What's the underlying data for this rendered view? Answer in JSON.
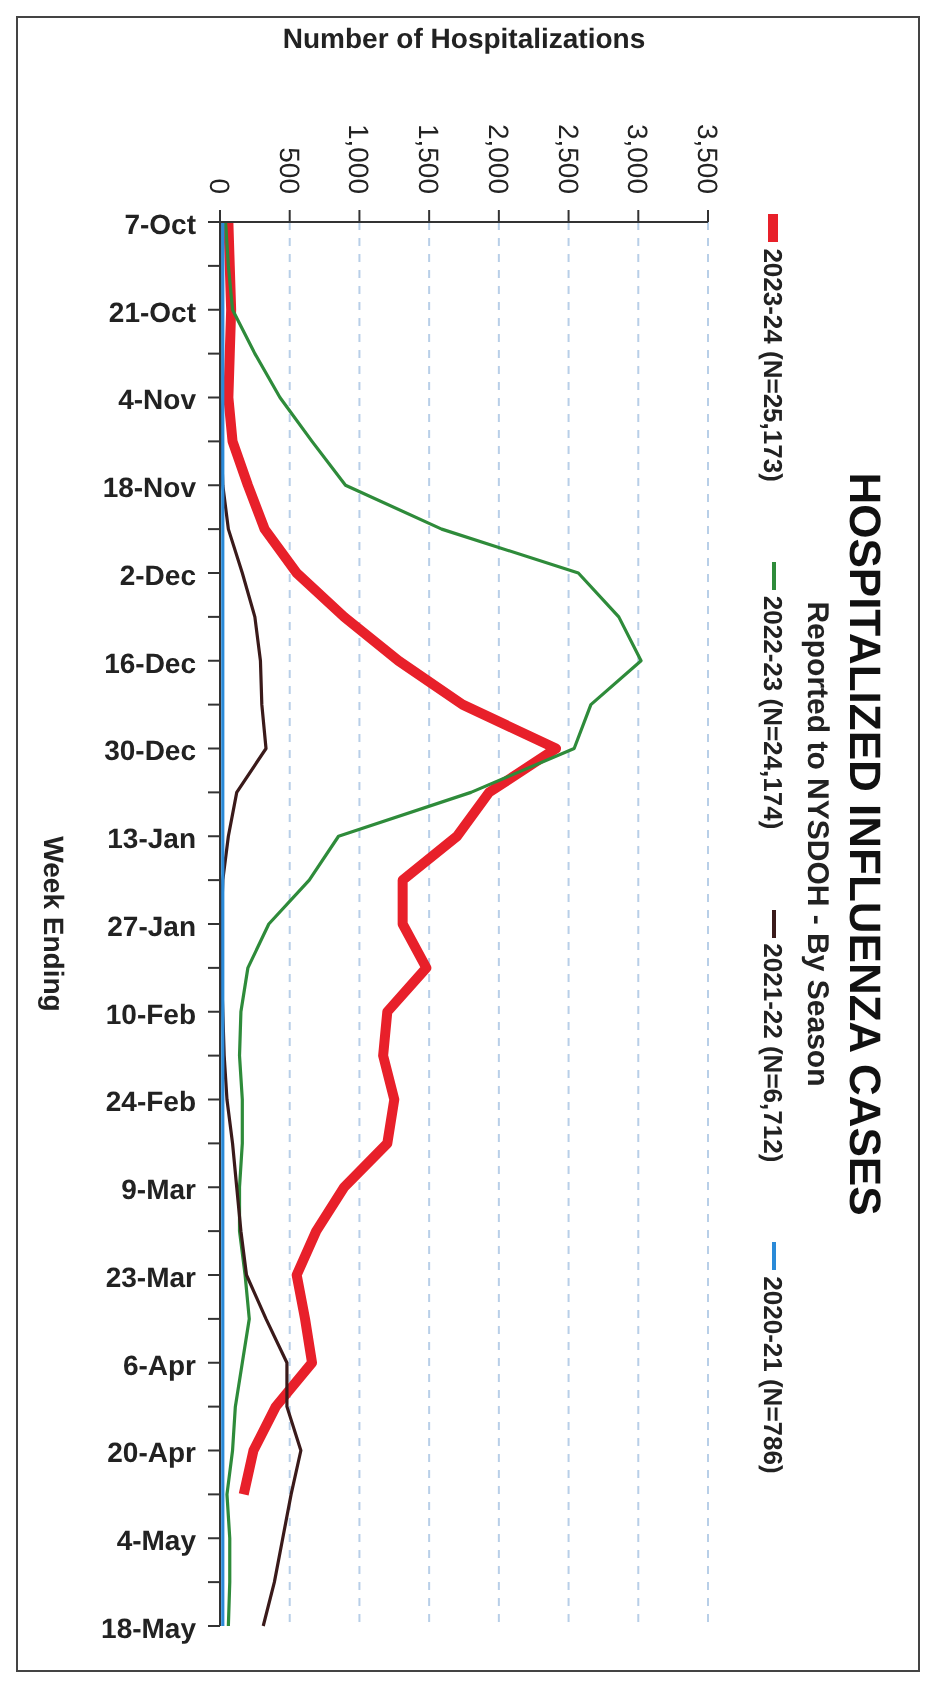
{
  "chart_data": {
    "type": "line",
    "title": "HOSPITALIZED INFLUENZA CASES",
    "subtitle": "Reported to NYSDOH - By Season",
    "xlabel": "Number of Hospitalizations",
    "ylabel": "Week Ending",
    "orientation": "horizontal",
    "categories": [
      "7-Oct",
      null,
      "21-Oct",
      null,
      "4-Nov",
      null,
      "18-Nov",
      null,
      "2-Dec",
      null,
      "16-Dec",
      null,
      "30-Dec",
      null,
      "13-Jan",
      null,
      "27-Jan",
      null,
      "10-Feb",
      null,
      "24-Feb",
      null,
      "9-Mar",
      null,
      "23-Mar",
      null,
      "6-Apr",
      null,
      "20-Apr",
      null,
      "4-May",
      null,
      "18-May"
    ],
    "series": [
      {
        "name": "2023-24 (N=25,173)",
        "color": "#e8202a",
        "values": [
          60,
          70,
          80,
          70,
          60,
          90,
          200,
          320,
          550,
          890,
          1280,
          1740,
          2410,
          1930,
          1700,
          1310,
          1310,
          1480,
          1200,
          1170,
          1250,
          1200,
          890,
          690,
          550,
          610,
          660,
          400,
          240,
          170,
          null,
          null,
          null
        ]
      },
      {
        "name": "2022-23 (N=24,174)",
        "color": "#2e8b3a",
        "values": [
          40,
          60,
          90,
          250,
          430,
          660,
          900,
          1590,
          2570,
          2860,
          3020,
          2660,
          2540,
          1800,
          850,
          640,
          350,
          200,
          150,
          140,
          160,
          160,
          140,
          140,
          180,
          210,
          160,
          110,
          90,
          50,
          70,
          70,
          60
        ]
      },
      {
        "name": "2021-22 (N=6,712)",
        "color": "#3a1a1a",
        "values": [
          0,
          0,
          0,
          0,
          0,
          10,
          20,
          60,
          160,
          250,
          290,
          300,
          330,
          120,
          60,
          20,
          10,
          10,
          20,
          30,
          50,
          90,
          120,
          150,
          190,
          330,
          480,
          480,
          580,
          510,
          450,
          390,
          310
        ]
      },
      {
        "name": "2020-21 (N=786)",
        "color": "#2a8ad8",
        "values": [
          20,
          20,
          20,
          20,
          20,
          20,
          20,
          20,
          20,
          20,
          20,
          20,
          20,
          20,
          20,
          20,
          20,
          20,
          20,
          20,
          20,
          20,
          20,
          20,
          20,
          20,
          20,
          20,
          20,
          20,
          20,
          20,
          20
        ]
      }
    ],
    "xlim": [
      0,
      3500
    ],
    "xticks": [
      0,
      500,
      {
        "value": 1000,
        "label": "1,000"
      },
      {
        "value": 1500,
        "label": "1,500"
      },
      {
        "value": 2000,
        "label": "2,000"
      },
      {
        "value": 2500,
        "label": "2,500"
      },
      {
        "value": 3000,
        "label": "3,000"
      },
      {
        "value": 3500,
        "label": "3,500"
      }
    ],
    "grid": "x",
    "legend": "right",
    "marker": "none",
    "line_style": "solid"
  }
}
